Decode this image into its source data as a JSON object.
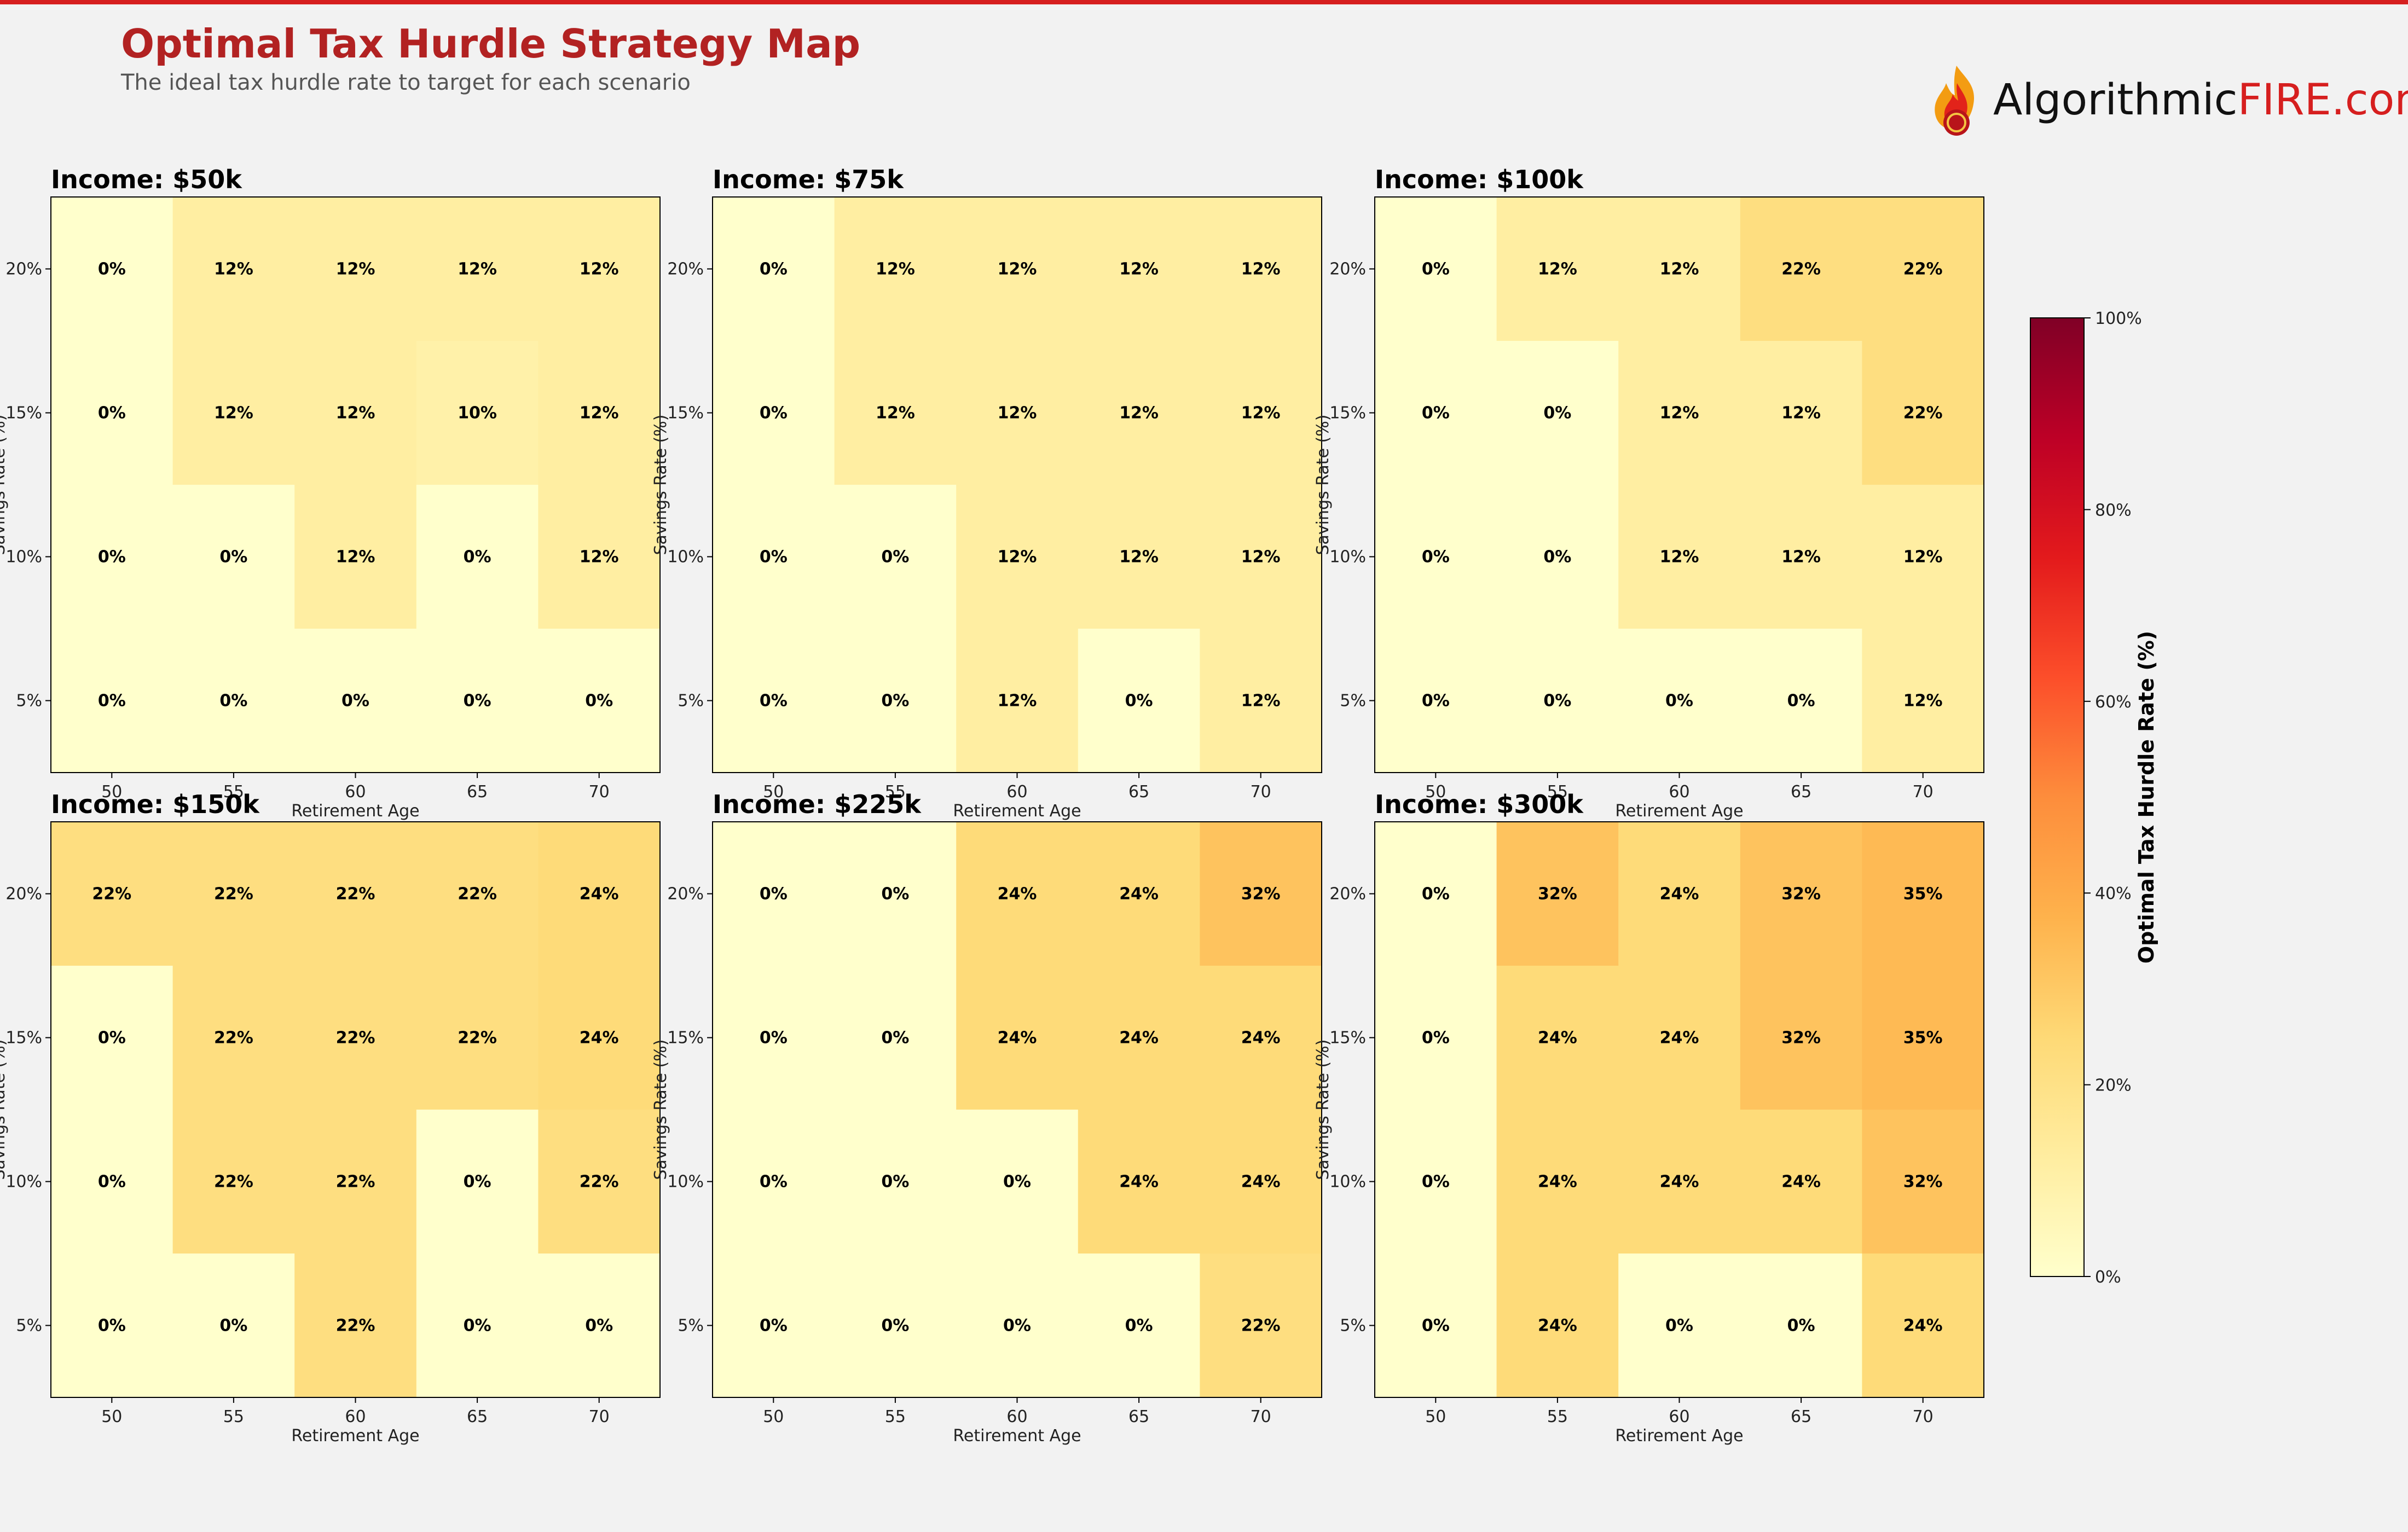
{
  "page": {
    "title": "Optimal Tax Hurdle Strategy Map",
    "subtitle": "The ideal tax hurdle rate to target for each scenario",
    "logo": {
      "text_main": "Algorithmic",
      "text_accent": "FIRE.com"
    },
    "colors": {
      "title": "#b22222",
      "accent": "#d61f1f",
      "background": "#f2f2f2"
    }
  },
  "chart_data": {
    "type": "heatmap",
    "title": "Optimal Tax Hurdle Strategy Map",
    "x_categories": [
      "50",
      "55",
      "60",
      "65",
      "70"
    ],
    "y_categories": [
      "20%",
      "15%",
      "10%",
      "5%"
    ],
    "xlabel": "Retirement Age",
    "ylabel": "Savings Rate (%)",
    "colorbar": {
      "label": "Optimal Tax Hurdle Rate (%)",
      "range": [
        0,
        100
      ],
      "ticks": [
        "0%",
        "20%",
        "40%",
        "60%",
        "80%",
        "100%"
      ],
      "colormap": "YlOrRd"
    },
    "panels": [
      {
        "title": "Income: $50k",
        "values": [
          [
            0,
            12,
            12,
            12,
            12
          ],
          [
            0,
            12,
            12,
            10,
            12
          ],
          [
            0,
            0,
            12,
            0,
            12
          ],
          [
            0,
            0,
            0,
            0,
            0
          ]
        ]
      },
      {
        "title": "Income: $75k",
        "values": [
          [
            0,
            12,
            12,
            12,
            12
          ],
          [
            0,
            12,
            12,
            12,
            12
          ],
          [
            0,
            0,
            12,
            12,
            12
          ],
          [
            0,
            0,
            12,
            0,
            12
          ]
        ]
      },
      {
        "title": "Income: $100k",
        "values": [
          [
            0,
            12,
            12,
            22,
            22
          ],
          [
            0,
            0,
            12,
            12,
            22
          ],
          [
            0,
            0,
            12,
            12,
            12
          ],
          [
            0,
            0,
            0,
            0,
            12
          ]
        ]
      },
      {
        "title": "Income: $150k",
        "values": [
          [
            22,
            22,
            22,
            22,
            24
          ],
          [
            0,
            22,
            22,
            22,
            24
          ],
          [
            0,
            22,
            22,
            0,
            22
          ],
          [
            0,
            0,
            22,
            0,
            0
          ]
        ]
      },
      {
        "title": "Income: $225k",
        "values": [
          [
            0,
            0,
            24,
            24,
            32
          ],
          [
            0,
            0,
            24,
            24,
            24
          ],
          [
            0,
            0,
            0,
            24,
            24
          ],
          [
            0,
            0,
            0,
            0,
            22
          ]
        ]
      },
      {
        "title": "Income: $300k",
        "values": [
          [
            0,
            32,
            24,
            32,
            35
          ],
          [
            0,
            24,
            24,
            32,
            35
          ],
          [
            0,
            24,
            24,
            24,
            32
          ],
          [
            0,
            24,
            0,
            0,
            24
          ]
        ]
      }
    ]
  }
}
